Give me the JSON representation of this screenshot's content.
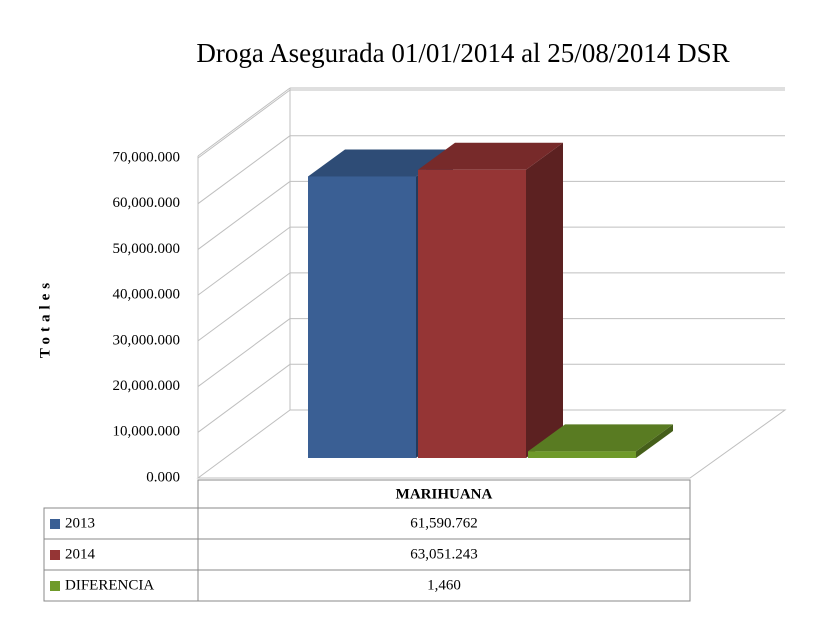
{
  "chart_data": {
    "type": "bar3d",
    "title": "Droga Asegurada 01/01/2014 al 25/08/2014 DSR",
    "y_label": "Totales",
    "categories": [
      "MARIHUANA"
    ],
    "series": [
      {
        "name": "2013",
        "color": "#3a5f94",
        "values": [
          61590.762
        ],
        "value_labels": [
          "61,590.762"
        ]
      },
      {
        "name": "2014",
        "color": "#953535",
        "values": [
          63051.243
        ],
        "value_labels": [
          "63,051.243"
        ]
      },
      {
        "name": "DIFERENCIA",
        "color": "#6f9a2a",
        "values": [
          1460
        ],
        "value_labels": [
          "1,460"
        ]
      }
    ],
    "ylim": [
      0,
      70000
    ],
    "yticks": [
      {
        "value": 0,
        "label": "0.000"
      },
      {
        "value": 10000,
        "label": "10,000.000"
      },
      {
        "value": 20000,
        "label": "20,000.000"
      },
      {
        "value": 30000,
        "label": "30,000.000"
      },
      {
        "value": 40000,
        "label": "40,000.000"
      },
      {
        "value": 50000,
        "label": "50,000.000"
      },
      {
        "value": 60000,
        "label": "60,000.000"
      },
      {
        "value": 70000,
        "label": "70,000.000"
      }
    ],
    "grid": true
  }
}
